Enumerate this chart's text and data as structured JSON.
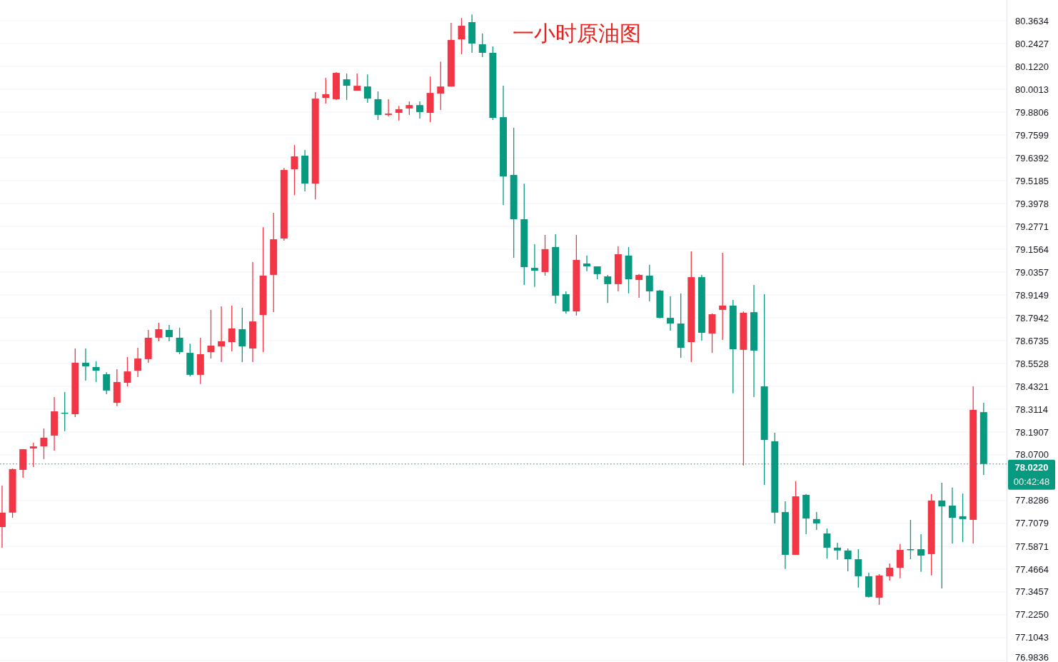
{
  "chart_data": {
    "type": "candlestick",
    "title": "一小时原油图",
    "categories": [
      null,
      null,
      null,
      null,
      null,
      null,
      null,
      null,
      null,
      null,
      null,
      null,
      null,
      null,
      null,
      null,
      null,
      null,
      null,
      null,
      null,
      null,
      null,
      null,
      null,
      null,
      null,
      null,
      null,
      null,
      null,
      null,
      null,
      null,
      null,
      null,
      null,
      null,
      null,
      null,
      null,
      null,
      null,
      null,
      null,
      null,
      null,
      null,
      null,
      null,
      null,
      null,
      null,
      null,
      null,
      null,
      null,
      null,
      null,
      null,
      null,
      null,
      null,
      null,
      null,
      null,
      null,
      null,
      null,
      null,
      null,
      null,
      null,
      null,
      null,
      null,
      null,
      null,
      null,
      null,
      null,
      null,
      null,
      null,
      null,
      null,
      null,
      null,
      null,
      null,
      null,
      null,
      null,
      null,
      null
    ],
    "ohlc": [
      [
        77.689,
        77.908,
        77.58,
        77.765
      ],
      [
        77.765,
        77.999,
        77.738,
        77.995
      ],
      [
        77.991,
        78.1,
        77.949,
        78.1
      ],
      [
        78.104,
        78.134,
        78.006,
        78.115
      ],
      [
        78.115,
        78.21,
        78.048,
        78.161
      ],
      [
        78.172,
        78.376,
        78.093,
        78.3
      ],
      [
        78.293,
        78.402,
        78.195,
        78.289
      ],
      [
        78.285,
        78.632,
        78.27,
        78.557
      ],
      [
        78.557,
        78.632,
        78.462,
        78.538
      ],
      [
        78.534,
        78.564,
        78.455,
        78.515
      ],
      [
        78.496,
        78.507,
        78.391,
        78.41
      ],
      [
        78.345,
        78.523,
        78.327,
        78.455
      ],
      [
        78.451,
        78.587,
        78.432,
        78.511
      ],
      [
        78.515,
        78.636,
        78.481,
        78.579
      ],
      [
        78.576,
        78.73,
        78.557,
        78.689
      ],
      [
        78.689,
        78.768,
        78.67,
        78.734
      ],
      [
        78.73,
        78.757,
        78.67,
        78.692
      ],
      [
        78.689,
        78.742,
        78.602,
        78.613
      ],
      [
        78.609,
        78.658,
        78.485,
        78.493
      ],
      [
        78.493,
        78.689,
        78.444,
        78.602
      ],
      [
        78.613,
        78.836,
        78.579,
        78.647
      ],
      [
        78.643,
        78.855,
        78.56,
        78.67
      ],
      [
        78.666,
        78.858,
        78.617,
        78.738
      ],
      [
        78.734,
        78.847,
        78.56,
        78.643
      ],
      [
        78.632,
        79.089,
        78.56,
        78.775
      ],
      [
        78.809,
        79.273,
        78.613,
        79.017
      ],
      [
        79.021,
        79.349,
        78.824,
        79.209
      ],
      [
        79.213,
        79.586,
        79.202,
        79.575
      ],
      [
        79.579,
        79.707,
        79.442,
        79.647
      ],
      [
        79.651,
        79.681,
        79.462,
        79.503
      ],
      [
        79.503,
        79.986,
        79.42,
        79.952
      ],
      [
        79.956,
        80.062,
        79.926,
        79.975
      ],
      [
        79.949,
        80.092,
        79.945,
        80.088
      ],
      [
        80.054,
        80.084,
        79.945,
        80.02
      ],
      [
        79.994,
        80.084,
        79.994,
        80.02
      ],
      [
        80.016,
        80.08,
        79.93,
        79.952
      ],
      [
        79.949,
        79.99,
        79.839,
        79.866
      ],
      [
        79.866,
        79.949,
        79.858,
        79.873
      ],
      [
        79.877,
        79.914,
        79.836,
        79.896
      ],
      [
        79.9,
        79.937,
        79.866,
        79.918
      ],
      [
        79.918,
        79.937,
        79.847,
        79.881
      ],
      [
        79.877,
        80.069,
        79.828,
        79.982
      ],
      [
        79.979,
        80.148,
        79.892,
        80.016
      ],
      [
        80.016,
        80.352,
        80.016,
        80.262
      ],
      [
        80.265,
        80.378,
        80.186,
        80.337
      ],
      [
        80.356,
        80.397,
        80.194,
        80.243
      ],
      [
        80.239,
        80.296,
        80.171,
        80.194
      ],
      [
        80.194,
        80.228,
        79.839,
        79.85
      ],
      [
        79.854,
        80.02,
        79.39,
        79.541
      ],
      [
        79.549,
        79.798,
        79.111,
        79.315
      ],
      [
        79.315,
        79.503,
        78.968,
        79.062
      ],
      [
        79.058,
        79.183,
        78.957,
        79.043
      ],
      [
        79.036,
        79.232,
        79.017,
        79.157
      ],
      [
        79.168,
        79.236,
        78.87,
        78.911
      ],
      [
        78.919,
        78.934,
        78.817,
        78.828
      ],
      [
        78.828,
        79.232,
        78.806,
        79.1
      ],
      [
        79.081,
        79.123,
        79.04,
        79.066
      ],
      [
        79.066,
        79.066,
        78.998,
        79.025
      ],
      [
        79.013,
        79.021,
        78.873,
        78.972
      ],
      [
        78.972,
        79.172,
        78.934,
        79.13
      ],
      [
        79.123,
        79.168,
        78.923,
        78.998
      ],
      [
        78.994,
        79.025,
        78.9,
        79.021
      ],
      [
        79.017,
        79.074,
        78.881,
        78.934
      ],
      [
        78.938,
        78.942,
        78.791,
        78.794
      ],
      [
        78.794,
        78.908,
        78.726,
        78.764
      ],
      [
        78.764,
        78.923,
        78.583,
        78.636
      ],
      [
        78.666,
        79.145,
        78.56,
        79.009
      ],
      [
        79.009,
        79.021,
        78.674,
        78.715
      ],
      [
        78.711,
        78.817,
        78.609,
        78.813
      ],
      [
        78.836,
        79.138,
        78.677,
        78.859
      ],
      [
        78.859,
        78.889,
        78.395,
        78.628
      ],
      [
        78.625,
        78.828,
        78.014,
        78.821
      ],
      [
        78.824,
        78.968,
        78.376,
        78.621
      ],
      [
        78.432,
        78.919,
        77.912,
        78.149
      ],
      [
        78.142,
        78.187,
        77.708,
        77.765
      ],
      [
        77.768,
        77.825,
        77.467,
        77.542
      ],
      [
        77.542,
        77.931,
        77.542,
        77.851
      ],
      [
        77.859,
        77.863,
        77.651,
        77.734
      ],
      [
        77.731,
        77.768,
        77.674,
        77.708
      ],
      [
        77.655,
        77.681,
        77.523,
        77.58
      ],
      [
        77.58,
        77.606,
        77.516,
        77.565
      ],
      [
        77.565,
        77.576,
        77.455,
        77.519
      ],
      [
        77.519,
        77.572,
        77.369,
        77.429
      ],
      [
        77.429,
        77.448,
        77.316,
        77.32
      ],
      [
        77.316,
        77.44,
        77.278,
        77.433
      ],
      [
        77.429,
        77.497,
        77.406,
        77.474
      ],
      [
        77.474,
        77.599,
        77.418,
        77.568
      ],
      [
        77.572,
        77.727,
        77.519,
        77.568
      ],
      [
        77.572,
        77.651,
        77.452,
        77.538
      ],
      [
        77.546,
        77.863,
        77.433,
        77.829
      ],
      [
        77.829,
        77.923,
        77.365,
        77.798
      ],
      [
        77.802,
        77.897,
        77.602,
        77.738
      ],
      [
        77.746,
        77.866,
        77.61,
        77.731
      ],
      [
        77.727,
        78.432,
        77.602,
        78.308
      ],
      [
        78.296,
        78.345,
        77.964,
        78.022
      ]
    ],
    "colors": [
      "#f23645",
      "#f23645",
      "#f23645",
      "#f23645",
      "#f23645",
      "#f23645",
      "#089981",
      "#f23645",
      "#089981",
      "#089981",
      "#089981",
      "#f23645",
      "#f23645",
      "#f23645",
      "#f23645",
      "#f23645",
      "#089981",
      "#089981",
      "#089981",
      "#f23645",
      "#f23645",
      "#f23645",
      "#f23645",
      "#089981",
      "#f23645",
      "#f23645",
      "#f23645",
      "#f23645",
      "#f23645",
      "#089981",
      "#f23645",
      "#f23645",
      "#f23645",
      "#089981",
      "#f23645",
      "#089981",
      "#089981",
      "#f23645",
      "#f23645",
      "#f23645",
      "#089981",
      "#f23645",
      "#f23645",
      "#f23645",
      "#f23645",
      "#089981",
      "#089981",
      "#089981",
      "#089981",
      "#089981",
      "#089981",
      "#089981",
      "#f23645",
      "#089981",
      "#089981",
      "#f23645",
      "#089981",
      "#089981",
      "#089981",
      "#f23645",
      "#089981",
      "#f23645",
      "#089981",
      "#089981",
      "#089981",
      "#089981",
      "#f23645",
      "#089981",
      "#f23645",
      "#f23645",
      "#089981",
      "#f23645",
      "#089981",
      "#089981",
      "#089981",
      "#089981",
      "#f23645",
      "#089981",
      "#089981",
      "#089981",
      "#089981",
      "#089981",
      "#089981",
      "#089981",
      "#f23645",
      "#f23645",
      "#f23645",
      "#089981",
      "#089981",
      "#f23645",
      "#089981",
      "#089981",
      "#089981",
      "#f23645",
      "#089981"
    ],
    "ylim": [
      76.976,
      80.473
    ],
    "yticks": [
      {
        "value": 76.9836,
        "label": "76.9836"
      },
      {
        "value": 77.1043,
        "label": "77.1043"
      },
      {
        "value": 77.225,
        "label": "77.2250"
      },
      {
        "value": 77.3457,
        "label": "77.3457"
      },
      {
        "value": 77.4664,
        "label": "77.4664"
      },
      {
        "value": 77.5871,
        "label": "77.5871"
      },
      {
        "value": 77.7079,
        "label": "77.7079"
      },
      {
        "value": 77.8286,
        "label": "77.8286"
      },
      {
        "value": 78.07,
        "label": "78.0700"
      },
      {
        "value": 78.1907,
        "label": "78.1907"
      },
      {
        "value": 78.3114,
        "label": "78.3114"
      },
      {
        "value": 78.4321,
        "label": "78.4321"
      },
      {
        "value": 78.5528,
        "label": "78.5528"
      },
      {
        "value": 78.6735,
        "label": "78.6735"
      },
      {
        "value": 78.7942,
        "label": "78.7942"
      },
      {
        "value": 78.9149,
        "label": "78.9149"
      },
      {
        "value": 79.0357,
        "label": "79.0357"
      },
      {
        "value": 79.1564,
        "label": "79.1564"
      },
      {
        "value": 79.2771,
        "label": "79.2771"
      },
      {
        "value": 79.3978,
        "label": "79.3978"
      },
      {
        "value": 79.5185,
        "label": "79.5185"
      },
      {
        "value": 79.6392,
        "label": "79.6392"
      },
      {
        "value": 79.7599,
        "label": "79.7599"
      },
      {
        "value": 79.8806,
        "label": "79.8806"
      },
      {
        "value": 80.0013,
        "label": "80.0013"
      },
      {
        "value": 80.122,
        "label": "80.1220"
      },
      {
        "value": 80.2427,
        "label": "80.2427"
      },
      {
        "value": 80.3634,
        "label": "80.3634"
      }
    ],
    "grid": "y",
    "ref_lines": [
      {
        "axis": "y",
        "value": 78.022,
        "label": "78.0220",
        "color": "#089981",
        "line_style": "dotted"
      }
    ],
    "annotations": [
      "00:42:48"
    ]
  }
}
